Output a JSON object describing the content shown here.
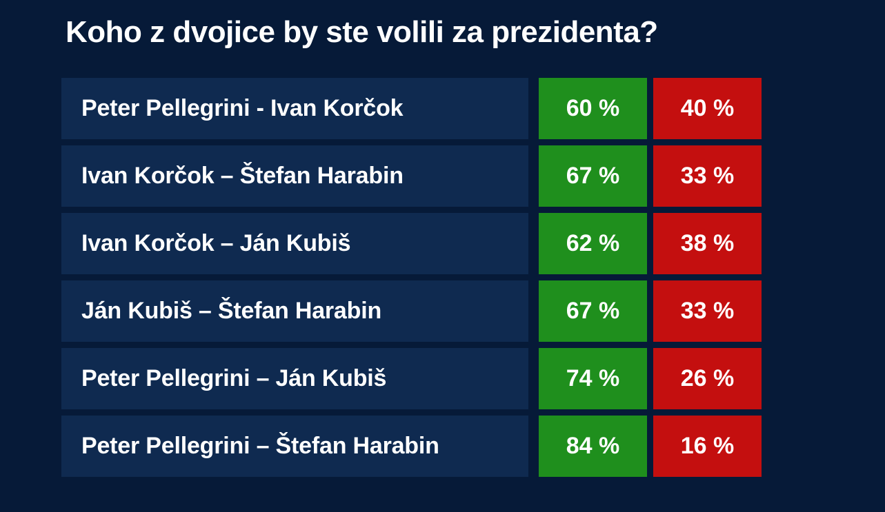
{
  "title": "Koho z dvojice by ste volili za prezidenta?",
  "colors": {
    "background": "#061a38",
    "row_background": "#0f2a50",
    "first_candidate": "#1f8f1d",
    "second_candidate": "#c40f0f"
  },
  "chart_data": {
    "type": "table",
    "title": "Koho z dvojice by ste volili za prezidenta?",
    "columns": [
      "",
      "",
      ""
    ],
    "rows": [
      {
        "pair": "Peter Pellegrini - Ivan Korčok",
        "first": "60 %",
        "second": "40 %"
      },
      {
        "pair": "Ivan Korčok – Štefan Harabin",
        "first": "67 %",
        "second": "33 %"
      },
      {
        "pair": "Ivan Korčok – Ján Kubiš",
        "first": "62 %",
        "second": "38 %"
      },
      {
        "pair": "Ján Kubiš – Štefan Harabin",
        "first": "67 %",
        "second": "33 %"
      },
      {
        "pair": "Peter Pellegrini – Ján Kubiš",
        "first": "74 %",
        "second": "26 %"
      },
      {
        "pair": "Peter Pellegrini – Štefan Harabin",
        "first": "84 %",
        "second": "16 %"
      }
    ]
  }
}
